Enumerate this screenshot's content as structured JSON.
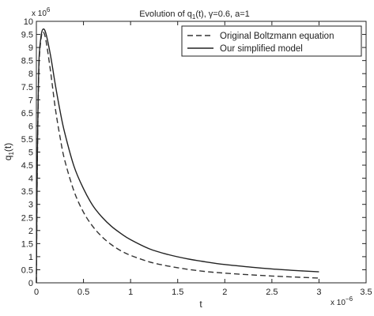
{
  "chart_data": {
    "type": "line",
    "title": "Evolution of q1(t), γ=0.6, a=1",
    "title_parts": {
      "prefix": "Evolution of q",
      "subscript": "1",
      "suffix": "(t), γ=0.6, a=1"
    },
    "xlabel": "t",
    "ylabel": "q1(t)",
    "ylabel_parts": {
      "base": "q",
      "subscript": "1",
      "suffix": "(t)"
    },
    "x_multiplier": {
      "base": "x 10",
      "exponent": "−6"
    },
    "y_multiplier": {
      "base": "x 10",
      "exponent": "6"
    },
    "xlim": [
      0,
      3.5
    ],
    "ylim": [
      0,
      10
    ],
    "x_ticks": [
      0,
      0.5,
      1,
      1.5,
      2,
      2.5,
      3,
      3.5
    ],
    "x_tick_labels": [
      "0",
      "0.5",
      "1",
      "1.5",
      "2",
      "2.5",
      "3",
      "3.5"
    ],
    "y_ticks": [
      0,
      0.5,
      1,
      1.5,
      2,
      2.5,
      3,
      3.5,
      4,
      4.5,
      5,
      5.5,
      6,
      6.5,
      7,
      7.5,
      8,
      8.5,
      9,
      9.5,
      10
    ],
    "y_tick_labels": [
      "0",
      "0.5",
      "1",
      "1.5",
      "2",
      "2.5",
      "3",
      "3.5",
      "4",
      "4.5",
      "5",
      "5.5",
      "6",
      "6.5",
      "7",
      "7.5",
      "8",
      "8.5",
      "9",
      "9.5",
      "10"
    ],
    "grid": false,
    "legend_position": "top-right",
    "series": [
      {
        "name": "Original Boltzmann equation",
        "style": "dashed",
        "color": "#333333",
        "x": [
          0,
          0.005,
          0.01,
          0.02,
          0.03,
          0.05,
          0.07,
          0.1,
          0.15,
          0.2,
          0.25,
          0.3,
          0.4,
          0.5,
          0.6,
          0.7,
          0.8,
          0.9,
          1.0,
          1.2,
          1.4,
          1.6,
          1.8,
          2.0,
          2.25,
          2.5,
          2.75,
          3.0
        ],
        "y": [
          0,
          2.5,
          4.5,
          7.0,
          8.5,
          9.35,
          9.6,
          9.3,
          8.1,
          6.7,
          5.6,
          4.7,
          3.5,
          2.7,
          2.15,
          1.75,
          1.45,
          1.22,
          1.05,
          0.8,
          0.64,
          0.52,
          0.43,
          0.37,
          0.31,
          0.26,
          0.22,
          0.18
        ]
      },
      {
        "name": "Our simplified model",
        "style": "solid",
        "color": "#222222",
        "x": [
          0,
          0.005,
          0.01,
          0.02,
          0.03,
          0.05,
          0.07,
          0.1,
          0.15,
          0.2,
          0.25,
          0.3,
          0.4,
          0.5,
          0.6,
          0.7,
          0.8,
          0.9,
          1.0,
          1.2,
          1.4,
          1.6,
          1.8,
          2.0,
          2.25,
          2.5,
          2.75,
          3.0
        ],
        "y": [
          0,
          2.6,
          4.7,
          7.2,
          8.7,
          9.45,
          9.7,
          9.55,
          8.7,
          7.6,
          6.6,
          5.75,
          4.45,
          3.6,
          2.95,
          2.5,
          2.15,
          1.88,
          1.65,
          1.3,
          1.08,
          0.92,
          0.8,
          0.7,
          0.61,
          0.53,
          0.47,
          0.42
        ]
      }
    ]
  }
}
